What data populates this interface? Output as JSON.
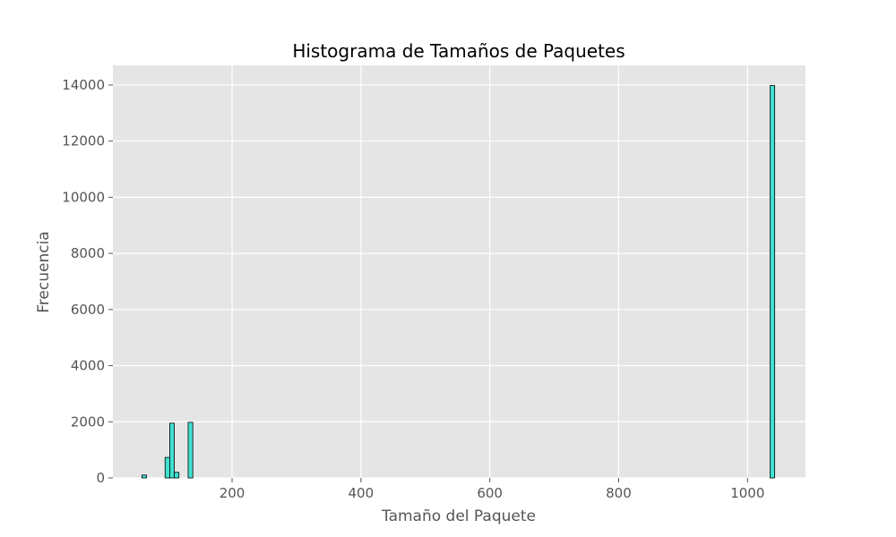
{
  "chart_data": {
    "type": "bar",
    "title": "Histograma de Tamaños de Paquetes",
    "xlabel": "Tamaño del Paquete",
    "ylabel": "Frecuencia",
    "xlim": [
      15,
      1090
    ],
    "ylim": [
      0,
      14700
    ],
    "xticks": [
      200,
      400,
      600,
      800,
      1000
    ],
    "yticks": [
      0,
      2000,
      4000,
      6000,
      8000,
      10000,
      12000,
      14000
    ],
    "bin_width": 7.17,
    "bins": [
      {
        "x_start": 60.0,
        "x_end": 67.2,
        "count": 100
      },
      {
        "x_start": 96.0,
        "x_end": 103.2,
        "count": 730
      },
      {
        "x_start": 103.2,
        "x_end": 110.3,
        "count": 1950
      },
      {
        "x_start": 110.3,
        "x_end": 117.5,
        "count": 200
      },
      {
        "x_start": 131.8,
        "x_end": 139.0,
        "count": 1980
      },
      {
        "x_start": 1035.0,
        "x_end": 1042.2,
        "count": 13980
      }
    ],
    "grid": true,
    "colors": {
      "background": "#e5e5e5",
      "grid": "#ffffff",
      "bar_fill": "#40e0d0",
      "bar_edge": "#000000"
    }
  }
}
